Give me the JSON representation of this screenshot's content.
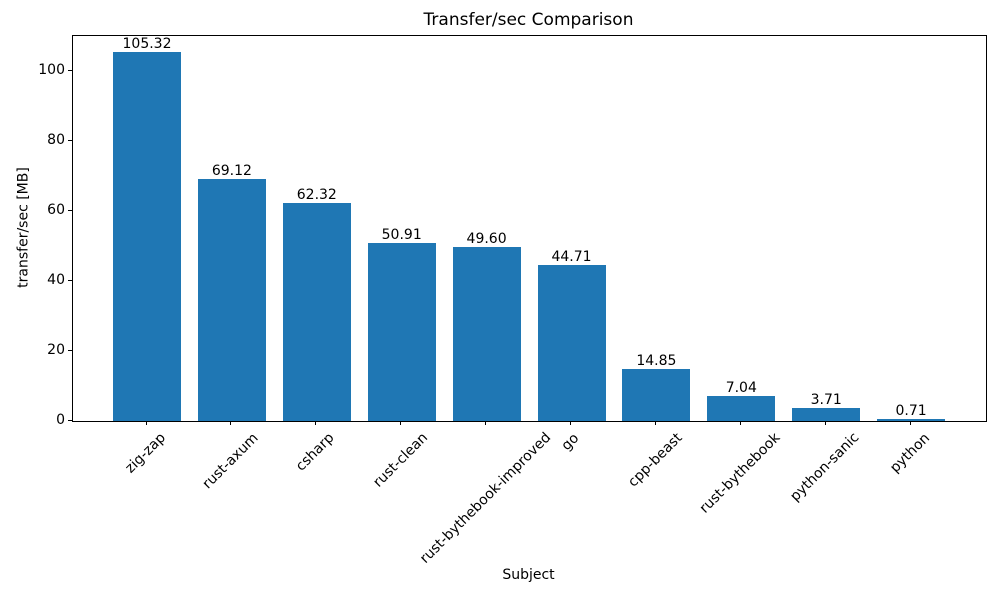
{
  "chart_data": {
    "type": "bar",
    "title": "Transfer/sec Comparison",
    "xlabel": "Subject",
    "ylabel": "transfer/sec [MB]",
    "categories": [
      "zig-zap",
      "rust-axum",
      "csharp",
      "rust-clean",
      "rust-bythebook-improved",
      "go",
      "cpp-beast",
      "rust-bythebook",
      "python-sanic",
      "python"
    ],
    "values": [
      105.32,
      69.12,
      62.32,
      50.91,
      49.6,
      44.71,
      14.85,
      7.04,
      3.71,
      0.71
    ],
    "bar_value_labels": [
      "105.32",
      "69.12",
      "62.32",
      "50.91",
      "49.60",
      "44.71",
      "14.85",
      "7.04",
      "3.71",
      "0.71"
    ],
    "yticks": [
      0,
      20,
      40,
      60,
      80,
      100
    ],
    "ylim": [
      0,
      110
    ],
    "bar_color": "#1f77b4",
    "text_color": "#000000",
    "background": "#ffffff",
    "grid": false,
    "legend": "none",
    "x_tick_rotation_deg": 45
  }
}
